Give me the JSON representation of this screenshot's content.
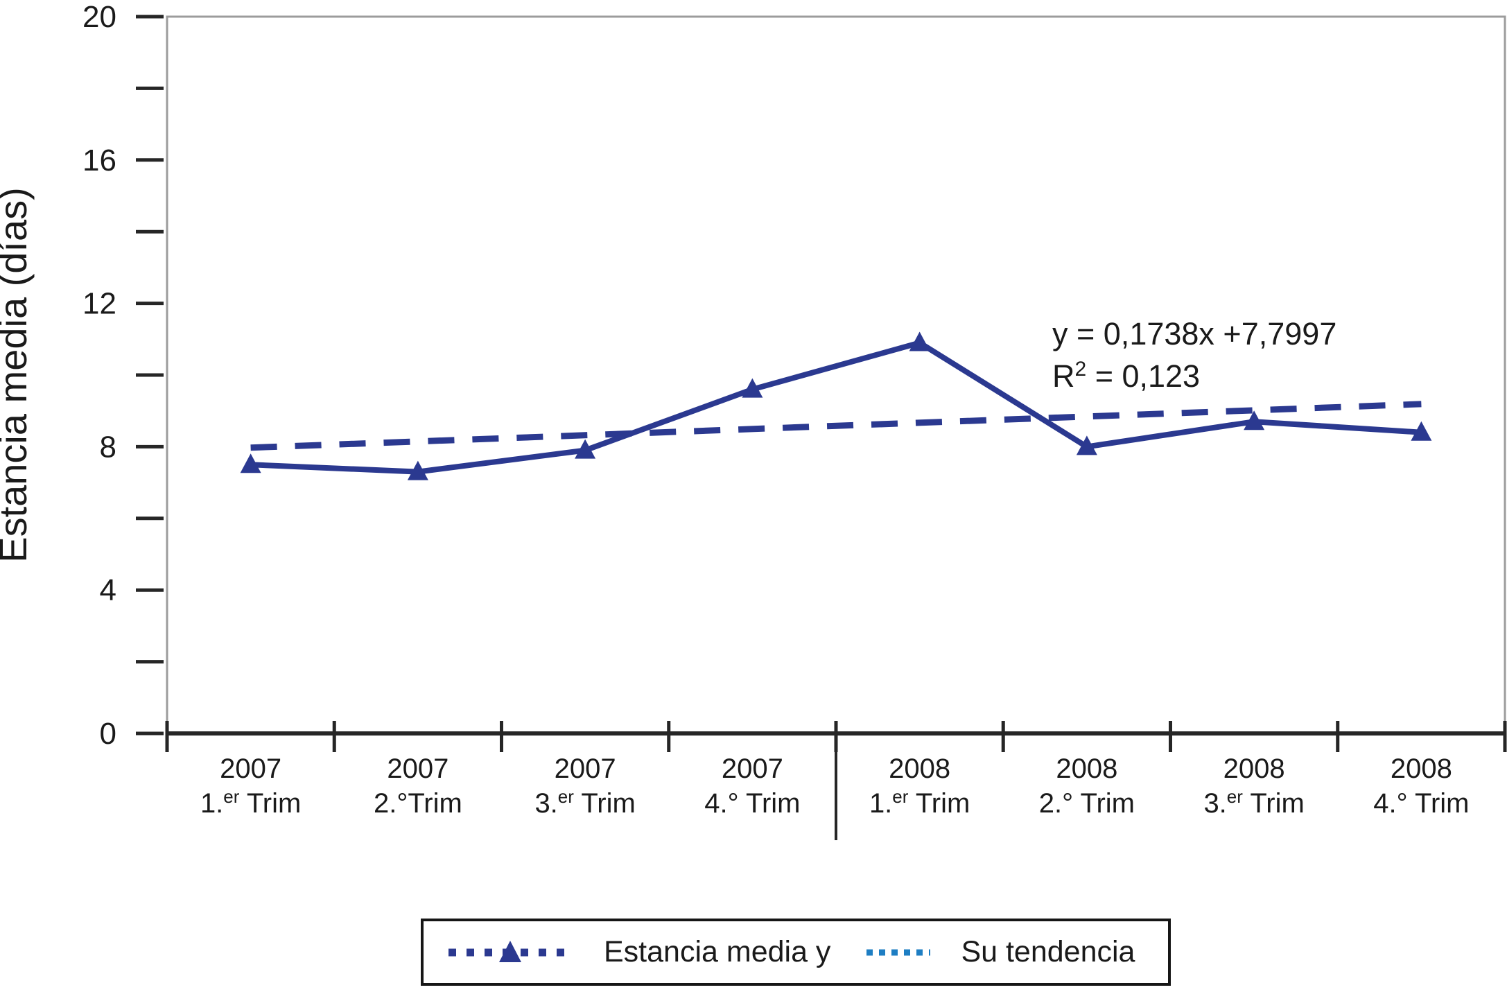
{
  "colors": {
    "series": "#2B3990",
    "trend_plot": "#2B3990",
    "trend_legend": "#1E7EC3",
    "axis": "#262626",
    "frame": "#9C9C9C",
    "text": "#1A1A1A"
  },
  "y_axis": {
    "title": "Estancia media (días)",
    "max": 20,
    "minor_step": 2,
    "tick_values": [
      0,
      4,
      8,
      12,
      16,
      20
    ],
    "tick_labels": [
      "0",
      "4",
      "8",
      "12",
      "16",
      "20"
    ]
  },
  "x_axis": {
    "categories": [
      {
        "year": "2007",
        "q_base": "1.",
        "q_sup": "er",
        "q_rest": " Trim"
      },
      {
        "year": "2007",
        "q_base": "2.°",
        "q_sup": "",
        "q_rest": "Trim"
      },
      {
        "year": "2007",
        "q_base": "3.",
        "q_sup": "er",
        "q_rest": " Trim"
      },
      {
        "year": "2007",
        "q_base": "4.°",
        "q_sup": "",
        "q_rest": " Trim"
      },
      {
        "year": "2008",
        "q_base": "1.",
        "q_sup": "er",
        "q_rest": " Trim"
      },
      {
        "year": "2008",
        "q_base": "2.°",
        "q_sup": "",
        "q_rest": " Trim"
      },
      {
        "year": "2008",
        "q_base": "3.",
        "q_sup": "er",
        "q_rest": " Trim"
      },
      {
        "year": "2008",
        "q_base": "4.°",
        "q_sup": "",
        "q_rest": " Trim"
      }
    ]
  },
  "chart_data": {
    "type": "line",
    "title": "",
    "xlabel": "",
    "ylabel": "Estancia media (días)",
    "ylim": [
      0,
      20
    ],
    "grid": false,
    "legend_position": "bottom",
    "categories": [
      "2007 1.er Trim",
      "2007 2.° Trim",
      "2007 3.er Trim",
      "2007 4.° Trim",
      "2008 1.er Trim",
      "2008 2.° Trim",
      "2008 3.er Trim",
      "2008 4.° Trim"
    ],
    "series": [
      {
        "name": "Estancia media y",
        "style": "solid-with-triangle-markers",
        "values": [
          7.5,
          7.3,
          7.9,
          9.6,
          10.9,
          8.0,
          8.7,
          8.4
        ]
      },
      {
        "name": "Su tendencia",
        "style": "dashed-trendline",
        "slope": 0.1738,
        "intercept": 7.7997,
        "values": [
          7.97,
          8.15,
          8.32,
          8.49,
          8.67,
          8.84,
          9.02,
          9.19
        ]
      }
    ],
    "annotation": {
      "line1": "y = 0,1738x +7,7997",
      "r2_base": "R",
      "r2_sup": "2",
      "r2_rest": " = 0,123"
    },
    "legend": [
      {
        "label": "Estancia media y"
      },
      {
        "label": "Su tendencia"
      }
    ]
  }
}
